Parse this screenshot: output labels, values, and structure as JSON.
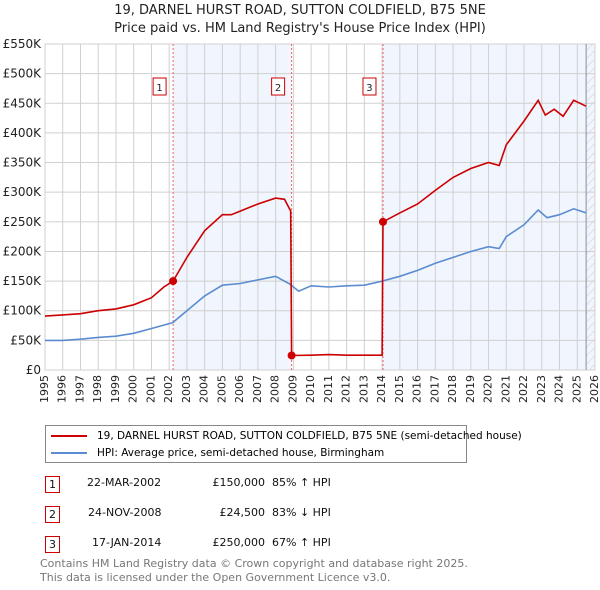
{
  "title": "19, DARNEL HURST ROAD, SUTTON COLDFIELD, B75 5NE",
  "subtitle": "Price paid vs. HM Land Registry's House Price Index (HPI)",
  "chart_data": {
    "type": "line",
    "xlim": [
      1995,
      2026
    ],
    "ylim": [
      0,
      550000
    ],
    "xticks": [
      1995,
      1996,
      1997,
      1998,
      1999,
      2000,
      2001,
      2002,
      2003,
      2004,
      2005,
      2006,
      2007,
      2008,
      2009,
      2010,
      2011,
      2012,
      2013,
      2014,
      2015,
      2016,
      2017,
      2018,
      2019,
      2020,
      2021,
      2022,
      2023,
      2024,
      2025,
      2026
    ],
    "yticks": [
      0,
      50000,
      100000,
      150000,
      200000,
      250000,
      300000,
      350000,
      400000,
      450000,
      500000,
      550000
    ],
    "ytick_labels": [
      "£0",
      "£50K",
      "£100K",
      "£150K",
      "£200K",
      "£250K",
      "£300K",
      "£350K",
      "£400K",
      "£450K",
      "£500K",
      "£550K"
    ],
    "grid": true,
    "shaded_ranges": [
      [
        2002.22,
        2008.9
      ],
      [
        2014.05,
        2026
      ]
    ],
    "hatched_from": 2025.5,
    "series": [
      {
        "name": "19, DARNEL HURST ROAD, SUTTON COLDFIELD, B75 5NE (semi-detached house)",
        "color": "#cc0000",
        "x": [
          1995,
          1996,
          1997,
          1998,
          1999,
          2000,
          2001,
          2001.7,
          2002.22,
          2003,
          2004,
          2005,
          2005.5,
          2006,
          2007,
          2008,
          2008.5,
          2008.85,
          2008.9,
          2010,
          2011,
          2012,
          2013,
          2014.0,
          2014.05,
          2015,
          2016,
          2017,
          2018,
          2019,
          2020,
          2020.6,
          2021,
          2022,
          2022.8,
          2023.2,
          2023.7,
          2024.2,
          2024.8,
          2025.5
        ],
        "y": [
          91000,
          93000,
          95000,
          100000,
          103000,
          110000,
          122000,
          140000,
          150000,
          190000,
          235000,
          262000,
          262000,
          268000,
          280000,
          290000,
          288000,
          268000,
          24500,
          25000,
          26000,
          25000,
          25000,
          25000,
          250000,
          265000,
          280000,
          303000,
          325000,
          340000,
          350000,
          345000,
          380000,
          420000,
          455000,
          430000,
          440000,
          428000,
          455000,
          445000
        ]
      },
      {
        "name": "HPI: Average price, semi-detached house, Birmingham",
        "color": "#5b8bd0",
        "x": [
          1995,
          1996,
          1997,
          1998,
          1999,
          2000,
          2001,
          2002.2,
          2003,
          2004,
          2005,
          2006,
          2007,
          2008,
          2008.8,
          2009.3,
          2010,
          2011,
          2012,
          2013,
          2014,
          2015,
          2016,
          2017,
          2018,
          2019,
          2020,
          2020.6,
          2021,
          2022,
          2022.8,
          2023.3,
          2024,
          2024.8,
          2025.5
        ],
        "y": [
          50000,
          50000,
          52000,
          55000,
          57000,
          62000,
          70000,
          80000,
          100000,
          125000,
          143000,
          146000,
          152000,
          158000,
          145000,
          133000,
          142000,
          140000,
          142000,
          143000,
          150000,
          158000,
          168000,
          180000,
          190000,
          200000,
          208000,
          205000,
          225000,
          245000,
          270000,
          257000,
          262000,
          272000,
          265000
        ]
      }
    ],
    "sales": [
      {
        "id": "1",
        "x": 2002.22,
        "y": 150000
      },
      {
        "id": "2",
        "x": 2008.9,
        "y": 24500
      },
      {
        "id": "3",
        "x": 2014.05,
        "y": 250000
      }
    ]
  },
  "legend": {
    "items": [
      {
        "label": "19, DARNEL HURST ROAD, SUTTON COLDFIELD, B75 5NE (semi-detached house)",
        "color": "#cc0000"
      },
      {
        "label": "HPI: Average price, semi-detached house, Birmingham",
        "color": "#5b8bd0"
      }
    ]
  },
  "transactions": [
    {
      "id": "1",
      "date": "22-MAR-2002",
      "price": "£150,000",
      "hpi": "85% ↑ HPI"
    },
    {
      "id": "2",
      "date": "24-NOV-2008",
      "price": "£24,500",
      "hpi": "83% ↓ HPI"
    },
    {
      "id": "3",
      "date": "17-JAN-2014",
      "price": "£250,000",
      "hpi": "67% ↑ HPI"
    }
  ],
  "footer": {
    "line1": "Contains HM Land Registry data © Crown copyright and database right 2025.",
    "line2": "This data is licensed under the Open Government Licence v3.0."
  }
}
